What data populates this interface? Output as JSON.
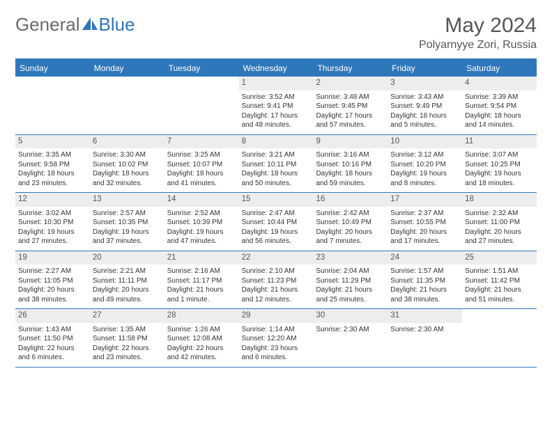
{
  "logo": {
    "text1": "General",
    "text2": "Blue"
  },
  "title": "May 2024",
  "location": "Polyarnyye Zori, Russia",
  "colors": {
    "header_bg": "#2f77bb",
    "header_text": "#ffffff",
    "daynum_bg": "#ededed",
    "text": "#333333",
    "title_text": "#555555"
  },
  "weekdays": [
    "Sunday",
    "Monday",
    "Tuesday",
    "Wednesday",
    "Thursday",
    "Friday",
    "Saturday"
  ],
  "weeks": [
    [
      {
        "n": "",
        "lines": []
      },
      {
        "n": "",
        "lines": []
      },
      {
        "n": "",
        "lines": []
      },
      {
        "n": "1",
        "lines": [
          "Sunrise: 3:52 AM",
          "Sunset: 9:41 PM",
          "Daylight: 17 hours and 48 minutes."
        ]
      },
      {
        "n": "2",
        "lines": [
          "Sunrise: 3:48 AM",
          "Sunset: 9:45 PM",
          "Daylight: 17 hours and 57 minutes."
        ]
      },
      {
        "n": "3",
        "lines": [
          "Sunrise: 3:43 AM",
          "Sunset: 9:49 PM",
          "Daylight: 18 hours and 5 minutes."
        ]
      },
      {
        "n": "4",
        "lines": [
          "Sunrise: 3:39 AM",
          "Sunset: 9:54 PM",
          "Daylight: 18 hours and 14 minutes."
        ]
      }
    ],
    [
      {
        "n": "5",
        "lines": [
          "Sunrise: 3:35 AM",
          "Sunset: 9:58 PM",
          "Daylight: 18 hours and 23 minutes."
        ]
      },
      {
        "n": "6",
        "lines": [
          "Sunrise: 3:30 AM",
          "Sunset: 10:02 PM",
          "Daylight: 18 hours and 32 minutes."
        ]
      },
      {
        "n": "7",
        "lines": [
          "Sunrise: 3:25 AM",
          "Sunset: 10:07 PM",
          "Daylight: 18 hours and 41 minutes."
        ]
      },
      {
        "n": "8",
        "lines": [
          "Sunrise: 3:21 AM",
          "Sunset: 10:11 PM",
          "Daylight: 18 hours and 50 minutes."
        ]
      },
      {
        "n": "9",
        "lines": [
          "Sunrise: 3:16 AM",
          "Sunset: 10:16 PM",
          "Daylight: 18 hours and 59 minutes."
        ]
      },
      {
        "n": "10",
        "lines": [
          "Sunrise: 3:12 AM",
          "Sunset: 10:20 PM",
          "Daylight: 19 hours and 8 minutes."
        ]
      },
      {
        "n": "11",
        "lines": [
          "Sunrise: 3:07 AM",
          "Sunset: 10:25 PM",
          "Daylight: 19 hours and 18 minutes."
        ]
      }
    ],
    [
      {
        "n": "12",
        "lines": [
          "Sunrise: 3:02 AM",
          "Sunset: 10:30 PM",
          "Daylight: 19 hours and 27 minutes."
        ]
      },
      {
        "n": "13",
        "lines": [
          "Sunrise: 2:57 AM",
          "Sunset: 10:35 PM",
          "Daylight: 19 hours and 37 minutes."
        ]
      },
      {
        "n": "14",
        "lines": [
          "Sunrise: 2:52 AM",
          "Sunset: 10:39 PM",
          "Daylight: 19 hours and 47 minutes."
        ]
      },
      {
        "n": "15",
        "lines": [
          "Sunrise: 2:47 AM",
          "Sunset: 10:44 PM",
          "Daylight: 19 hours and 56 minutes."
        ]
      },
      {
        "n": "16",
        "lines": [
          "Sunrise: 2:42 AM",
          "Sunset: 10:49 PM",
          "Daylight: 20 hours and 7 minutes."
        ]
      },
      {
        "n": "17",
        "lines": [
          "Sunrise: 2:37 AM",
          "Sunset: 10:55 PM",
          "Daylight: 20 hours and 17 minutes."
        ]
      },
      {
        "n": "18",
        "lines": [
          "Sunrise: 2:32 AM",
          "Sunset: 11:00 PM",
          "Daylight: 20 hours and 27 minutes."
        ]
      }
    ],
    [
      {
        "n": "19",
        "lines": [
          "Sunrise: 2:27 AM",
          "Sunset: 11:05 PM",
          "Daylight: 20 hours and 38 minutes."
        ]
      },
      {
        "n": "20",
        "lines": [
          "Sunrise: 2:21 AM",
          "Sunset: 11:11 PM",
          "Daylight: 20 hours and 49 minutes."
        ]
      },
      {
        "n": "21",
        "lines": [
          "Sunrise: 2:16 AM",
          "Sunset: 11:17 PM",
          "Daylight: 21 hours and 1 minute."
        ]
      },
      {
        "n": "22",
        "lines": [
          "Sunrise: 2:10 AM",
          "Sunset: 11:23 PM",
          "Daylight: 21 hours and 12 minutes."
        ]
      },
      {
        "n": "23",
        "lines": [
          "Sunrise: 2:04 AM",
          "Sunset: 11:29 PM",
          "Daylight: 21 hours and 25 minutes."
        ]
      },
      {
        "n": "24",
        "lines": [
          "Sunrise: 1:57 AM",
          "Sunset: 11:35 PM",
          "Daylight: 21 hours and 38 minutes."
        ]
      },
      {
        "n": "25",
        "lines": [
          "Sunrise: 1:51 AM",
          "Sunset: 11:42 PM",
          "Daylight: 21 hours and 51 minutes."
        ]
      }
    ],
    [
      {
        "n": "26",
        "lines": [
          "Sunrise: 1:43 AM",
          "Sunset: 11:50 PM",
          "Daylight: 22 hours and 6 minutes."
        ]
      },
      {
        "n": "27",
        "lines": [
          "Sunrise: 1:35 AM",
          "Sunset: 11:58 PM",
          "Daylight: 22 hours and 23 minutes."
        ]
      },
      {
        "n": "28",
        "lines": [
          "Sunrise: 1:26 AM",
          "Sunset: 12:08 AM",
          "Daylight: 22 hours and 42 minutes."
        ]
      },
      {
        "n": "29",
        "lines": [
          "Sunrise: 1:14 AM",
          "Sunset: 12:20 AM",
          "Daylight: 23 hours and 6 minutes."
        ]
      },
      {
        "n": "30",
        "lines": [
          "Sunrise: 2:30 AM"
        ]
      },
      {
        "n": "31",
        "lines": [
          "Sunrise: 2:30 AM"
        ]
      },
      {
        "n": "",
        "lines": []
      }
    ]
  ]
}
